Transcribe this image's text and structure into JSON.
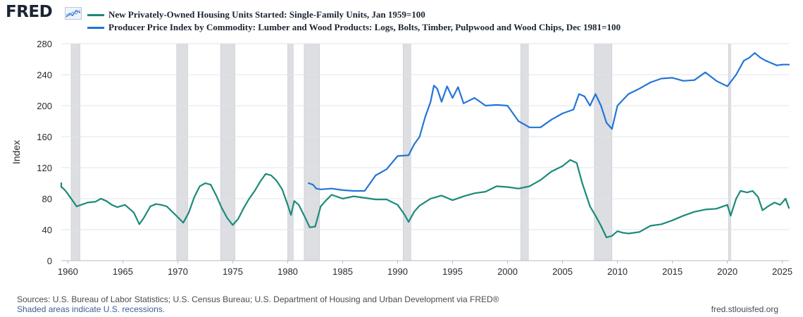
{
  "brand": {
    "logo_text": "FRED",
    "logo_icon": "chart-line-icon"
  },
  "footer": {
    "sources": "Sources: U.S. Bureau of Labor Statistics; U.S. Census Bureau; U.S. Department of Housing and Urban Development via FRED®",
    "recession_note": "Shaded areas indicate U.S. recessions.",
    "site": "fred.stlouisfed.org"
  },
  "chart_data": {
    "type": "line",
    "ylabel": "Index",
    "xlim": [
      1959.4,
      2025.6
    ],
    "ylim": [
      0,
      280
    ],
    "yticks": [
      0,
      40,
      80,
      120,
      160,
      200,
      240,
      280
    ],
    "xticks": [
      1960,
      1965,
      1970,
      1975,
      1980,
      1985,
      1990,
      1995,
      2000,
      2005,
      2010,
      2015,
      2020,
      2025
    ],
    "grid": true,
    "legend_position": "top-left",
    "recessions": [
      [
        1960.3,
        1961.1
      ],
      [
        1969.9,
        1970.9
      ],
      [
        1973.9,
        1975.2
      ],
      [
        1980.0,
        1980.5
      ],
      [
        1981.5,
        1982.9
      ],
      [
        1990.5,
        1991.2
      ],
      [
        2001.2,
        2001.9
      ],
      [
        2007.9,
        2009.5
      ],
      [
        2020.1,
        2020.3
      ]
    ],
    "colors": {
      "recession_fill": "#dcdee2",
      "grid": "#e1e3e8"
    },
    "series": [
      {
        "name": "New Privately-Owned Housing Units Started: Single-Family Units, Jan 1959=100",
        "color": "#1b8a7a",
        "x": [
          1959.0,
          1959.3,
          1959.6,
          1959.9,
          1960.2,
          1960.5,
          1960.8,
          1961.2,
          1961.8,
          1962.5,
          1963.0,
          1963.5,
          1964.0,
          1964.5,
          1965.2,
          1966.0,
          1966.5,
          1966.9,
          1967.5,
          1968.0,
          1968.5,
          1969.0,
          1969.5,
          1970.0,
          1970.5,
          1971.0,
          1971.5,
          1972.0,
          1972.5,
          1973.0,
          1973.5,
          1974.0,
          1974.5,
          1975.0,
          1975.5,
          1976.0,
          1976.5,
          1977.0,
          1977.5,
          1978.0,
          1978.5,
          1979.0,
          1979.5,
          1980.0,
          1980.3,
          1980.6,
          1981.0,
          1981.5,
          1982.0,
          1982.5,
          1983.0,
          1983.5,
          1984.0,
          1985.0,
          1986.0,
          1987.0,
          1988.0,
          1989.0,
          1990.0,
          1990.6,
          1991.0,
          1991.5,
          1992.0,
          1993.0,
          1994.0,
          1995.0,
          1996.0,
          1997.0,
          1998.0,
          1999.0,
          2000.0,
          2001.0,
          2002.0,
          2003.0,
          2004.0,
          2005.0,
          2005.7,
          2006.3,
          2006.8,
          2007.5,
          2008.0,
          2008.5,
          2009.0,
          2009.5,
          2010.0,
          2010.5,
          2011.0,
          2012.0,
          2013.0,
          2014.0,
          2015.0,
          2016.0,
          2017.0,
          2018.0,
          2019.0,
          2020.0,
          2020.3,
          2020.8,
          2021.2,
          2021.8,
          2022.3,
          2022.8,
          2023.2,
          2023.8,
          2024.3,
          2024.8,
          2025.3,
          2025.6
        ],
        "values": [
          100,
          95,
          93,
          88,
          82,
          76,
          70,
          72,
          75,
          76,
          80,
          77,
          72,
          69,
          72,
          62,
          47,
          55,
          70,
          73,
          72,
          70,
          63,
          56,
          49,
          62,
          82,
          96,
          100,
          98,
          84,
          68,
          55,
          46,
          54,
          68,
          80,
          90,
          102,
          112,
          110,
          103,
          92,
          72,
          59,
          77,
          72,
          58,
          43,
          44,
          70,
          78,
          85,
          80,
          83,
          81,
          79,
          79,
          72,
          60,
          50,
          63,
          71,
          80,
          84,
          78,
          83,
          87,
          89,
          96,
          95,
          93,
          96,
          104,
          115,
          122,
          130,
          126,
          100,
          70,
          58,
          45,
          30,
          32,
          38,
          36,
          35,
          37,
          45,
          47,
          52,
          58,
          63,
          66,
          67,
          72,
          58,
          80,
          90,
          88,
          90,
          82,
          65,
          71,
          75,
          72,
          80,
          68
        ]
      },
      {
        "name": "Producer Price Index by Commodity: Lumber and Wood Products: Logs, Bolts, Timber, Pulpwood and Wood Chips, Dec 1981=100",
        "color": "#2375d8",
        "x": [
          1981.9,
          1982.3,
          1982.6,
          1983.0,
          1984.0,
          1985.0,
          1986.0,
          1987.0,
          1988.0,
          1989.0,
          1990.0,
          1991.0,
          1991.5,
          1992.0,
          1992.5,
          1993.0,
          1993.3,
          1993.6,
          1994.0,
          1994.5,
          1995.0,
          1995.5,
          1996.0,
          1997.0,
          1998.0,
          1999.0,
          2000.0,
          2001.0,
          2002.0,
          2003.0,
          2004.0,
          2005.0,
          2006.0,
          2006.5,
          2007.0,
          2007.5,
          2008.0,
          2008.5,
          2009.0,
          2009.5,
          2010.0,
          2011.0,
          2012.0,
          2013.0,
          2014.0,
          2015.0,
          2016.0,
          2017.0,
          2018.0,
          2019.0,
          2020.0,
          2020.8,
          2021.5,
          2022.0,
          2022.5,
          2023.0,
          2023.5,
          2024.0,
          2024.5,
          2025.0,
          2025.6
        ],
        "values": [
          100,
          98,
          93,
          92,
          93,
          91,
          90,
          90,
          110,
          118,
          135,
          136,
          150,
          160,
          185,
          205,
          226,
          222,
          205,
          225,
          210,
          224,
          203,
          210,
          200,
          201,
          200,
          180,
          172,
          172,
          182,
          190,
          195,
          215,
          212,
          200,
          215,
          200,
          178,
          170,
          200,
          215,
          222,
          230,
          235,
          236,
          232,
          233,
          243,
          232,
          225,
          240,
          258,
          262,
          268,
          262,
          258,
          255,
          252,
          253,
          253
        ]
      }
    ]
  }
}
